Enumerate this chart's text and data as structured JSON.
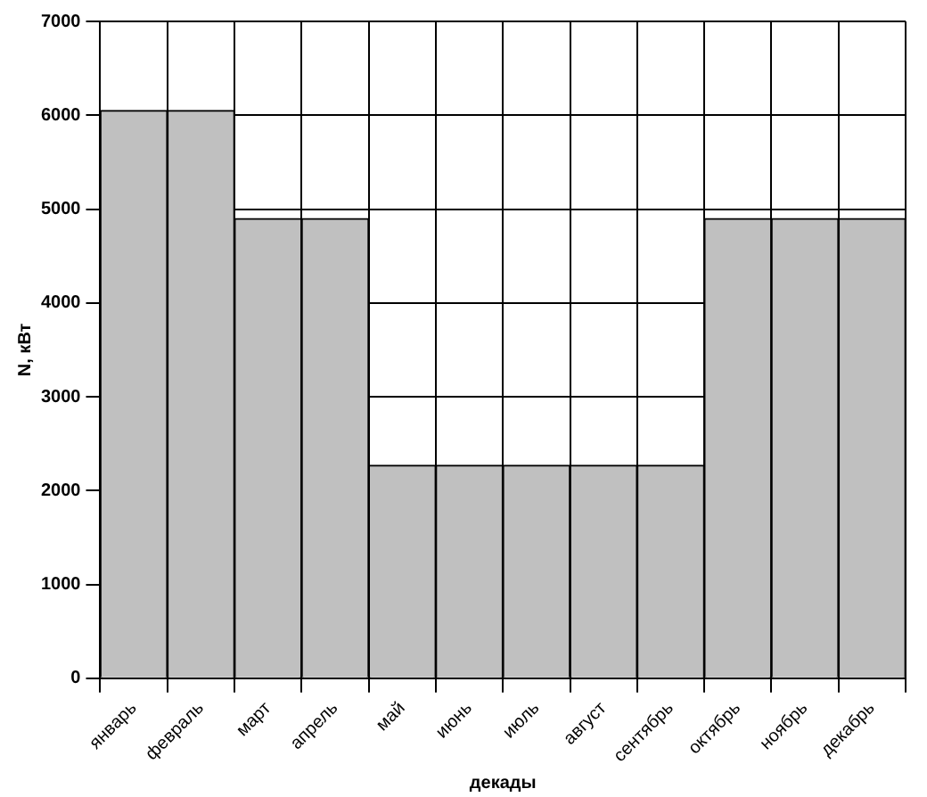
{
  "chart_data": {
    "type": "bar",
    "xlabel": "декады",
    "ylabel": "N, кВт",
    "categories": [
      "январь",
      "февраль",
      "март",
      "апрель",
      "май",
      "июнь",
      "июль",
      "август",
      "сентябрь",
      "октябрь",
      "ноябрь",
      "декабрь"
    ],
    "values": [
      6050,
      6050,
      4900,
      4900,
      2270,
      2270,
      2270,
      2270,
      2270,
      4900,
      4900,
      4900
    ],
    "color": "#c0c0c0",
    "ylim": [
      0,
      7000
    ],
    "yticks": [
      0,
      1000,
      2000,
      3000,
      4000,
      5000,
      6000,
      7000
    ],
    "grid": true
  }
}
